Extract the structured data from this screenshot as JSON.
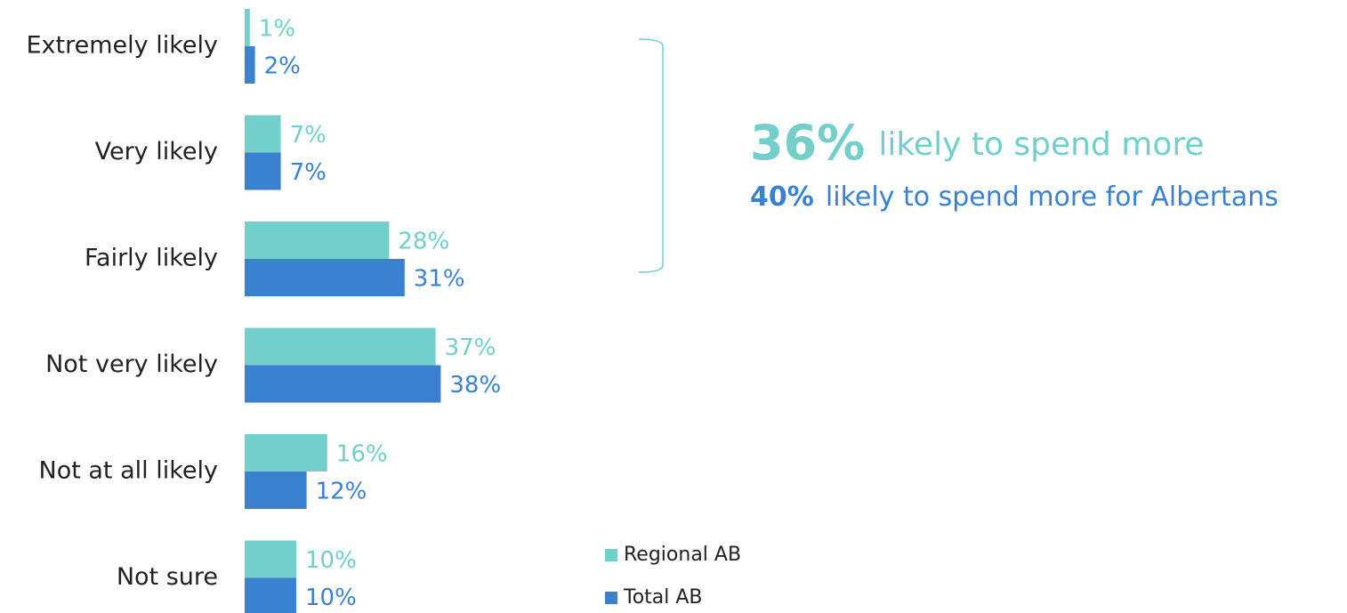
{
  "chart_data": {
    "type": "hbar",
    "categories": [
      "Extremely likely",
      "Very likely",
      "Fairly likely",
      "Not very likely",
      "Not at all likely",
      "Not sure"
    ],
    "series": [
      {
        "name": "Regional AB",
        "color": "#72cfc9",
        "values": [
          1,
          7,
          28,
          37,
          16,
          10
        ],
        "value_labels": [
          "1%",
          "7%",
          "28%",
          "37%",
          "16%",
          "10%"
        ]
      },
      {
        "name": "Total AB",
        "color": "#3a82d0",
        "values": [
          2,
          7,
          31,
          38,
          12,
          10
        ],
        "value_labels": [
          "2%",
          "7%",
          "31%",
          "38%",
          "12%",
          "10%"
        ]
      }
    ],
    "annotations": [
      {
        "emphasis": "36%",
        "text": "likely to spend more"
      },
      {
        "emphasis": "40%",
        "text": "likely to spend more for Albertans"
      }
    ]
  }
}
